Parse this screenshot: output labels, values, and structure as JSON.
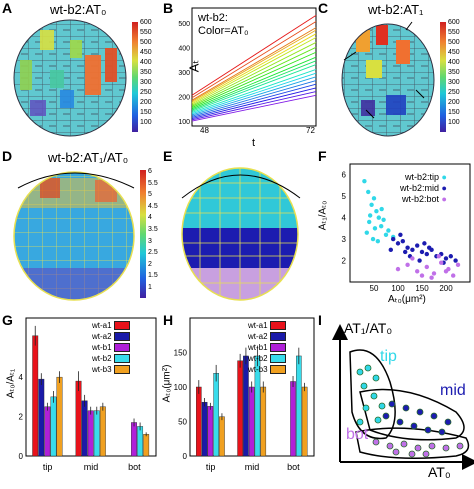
{
  "panels": {
    "A": {
      "letter": "A",
      "title": "wt-b2:AT₀",
      "colorbar_ticks": [
        "600",
        "550",
        "500",
        "450",
        "400",
        "350",
        "300",
        "250",
        "200",
        "150",
        "100"
      ]
    },
    "B": {
      "letter": "B",
      "annotation_line1": "wt-b2:",
      "annotation_line2": "Color=AT₀",
      "ylabel": "Aₜ",
      "xlabel": "t",
      "yticks": [
        "500",
        "400",
        "300",
        "200",
        "100"
      ],
      "xticks": [
        "48",
        "72"
      ]
    },
    "C": {
      "letter": "C",
      "title": "wt-b2:AT₁",
      "colorbar_ticks": [
        "600",
        "550",
        "500",
        "450",
        "400",
        "350",
        "300",
        "250",
        "200",
        "150",
        "100"
      ]
    },
    "D": {
      "letter": "D",
      "title": "wt-b2:AT₁/AT₀",
      "colorbar_ticks": [
        "6",
        "5.5",
        "5",
        "4.5",
        "4",
        "3.5",
        "3",
        "2.5",
        "2",
        "1.5",
        "1"
      ]
    },
    "E": {
      "letter": "E"
    },
    "F": {
      "letter": "F",
      "ylabel": "Aₜ₁/Aₜ₀",
      "xlabel": "Aₜ₀(μm²)",
      "yticks": [
        "6",
        "5",
        "4",
        "3",
        "2"
      ],
      "xticks": [
        "50",
        "100",
        "150",
        "200"
      ],
      "legend": [
        "wt-b2:tip",
        "wt-b2:mid",
        "wt-b2:bot"
      ]
    },
    "G": {
      "letter": "G",
      "ylabel": "Aₜ₀/Aₜ₁",
      "yticks": [
        "4",
        "2",
        "0"
      ],
      "xticks": [
        "tip",
        "mid",
        "bot"
      ]
    },
    "H": {
      "letter": "H",
      "ylabel": "Aₜ₀(μm²)",
      "yticks": [
        "150",
        "100",
        "50",
        "0"
      ],
      "xticks": [
        "tip",
        "mid",
        "bot"
      ]
    },
    "I": {
      "letter": "I",
      "ylabel": "AT₁/AT₀",
      "xlabel": "AT₀",
      "group_tip": "tip",
      "group_mid": "mid",
      "group_bot": "bot"
    }
  },
  "colors": {
    "wt-a1": "#e8121b",
    "wt-a2": "#1a1aa8",
    "wt-b1": "#b020d8",
    "wt-b2": "#38dceb",
    "wt-b3": "#f0a020",
    "tip": "#30d8e8",
    "mid": "#1c1cb0",
    "bot": "#c070e8",
    "gray": "#808080"
  },
  "chart_data": [
    {
      "type": "line",
      "panel": "B",
      "x": [
        48,
        72
      ],
      "ylim": [
        80,
        560
      ],
      "series_start": [
        205,
        195,
        185,
        180,
        175,
        170,
        165,
        160,
        155,
        150,
        145,
        140,
        135,
        130,
        125,
        120,
        115,
        110,
        105,
        100
      ],
      "series_end": [
        530,
        505,
        480,
        470,
        455,
        440,
        420,
        400,
        380,
        360,
        345,
        330,
        310,
        295,
        280,
        265,
        250,
        235,
        220,
        205
      ]
    },
    {
      "type": "scatter",
      "panel": "F",
      "xlim": [
        0,
        250
      ],
      "ylim": [
        1,
        6.5
      ],
      "legend": [
        "wt-b2:tip",
        "wt-b2:mid",
        "wt-b2:bot"
      ],
      "series": [
        {
          "name": "wt-b2:tip",
          "points": [
            [
              30,
              5.7
            ],
            [
              38,
              5.2
            ],
            [
              45,
              4.6
            ],
            [
              50,
              4.9
            ],
            [
              55,
              4.3
            ],
            [
              60,
              4.0
            ],
            [
              40,
              3.8
            ],
            [
              65,
              3.6
            ],
            [
              70,
              3.9
            ],
            [
              35,
              3.3
            ],
            [
              75,
              3.2
            ],
            [
              48,
              3.0
            ],
            [
              58,
              2.9
            ],
            [
              80,
              3.4
            ],
            [
              90,
              3.1
            ],
            [
              42,
              4.1
            ],
            [
              66,
              4.4
            ],
            [
              52,
              3.5
            ]
          ]
        },
        {
          "name": "wt-b2:mid",
          "points": [
            [
              90,
              3.0
            ],
            [
              100,
              2.8
            ],
            [
              110,
              2.9
            ],
            [
              120,
              2.6
            ],
            [
              130,
              2.5
            ],
            [
              140,
              2.7
            ],
            [
              150,
              2.4
            ],
            [
              160,
              2.3
            ],
            [
              170,
              2.5
            ],
            [
              180,
              2.2
            ],
            [
              190,
              2.3
            ],
            [
              200,
              2.1
            ],
            [
              210,
              2.2
            ],
            [
              220,
              2.0
            ],
            [
              105,
              3.2
            ],
            [
              125,
              2.2
            ],
            [
              145,
              2.0
            ],
            [
              165,
              2.6
            ],
            [
              195,
              1.9
            ],
            [
              85,
              2.5
            ],
            [
              115,
              2.4
            ],
            [
              155,
              2.8
            ]
          ]
        },
        {
          "name": "wt-b2:bot",
          "points": [
            [
              100,
              1.6
            ],
            [
              120,
              1.8
            ],
            [
              140,
              1.5
            ],
            [
              160,
              1.7
            ],
            [
              175,
              1.4
            ],
            [
              190,
              1.9
            ],
            [
              205,
              1.6
            ],
            [
              215,
              1.3
            ],
            [
              225,
              1.8
            ],
            [
              130,
              2.1
            ],
            [
              150,
              1.3
            ],
            [
              185,
              2.2
            ],
            [
              200,
              1.5
            ],
            [
              170,
              1.2
            ]
          ]
        }
      ]
    },
    {
      "type": "bar",
      "panel": "G",
      "categories": [
        "tip",
        "mid",
        "bot"
      ],
      "ylim": [
        0,
        7
      ],
      "series": [
        {
          "name": "wt-a1",
          "values": [
            6.1,
            3.8,
            null
          ],
          "errors": [
            0.5,
            0.5,
            null
          ]
        },
        {
          "name": "wt-a2",
          "values": [
            3.9,
            2.8,
            null
          ],
          "errors": [
            0.3,
            0.3,
            null
          ]
        },
        {
          "name": "wt-b1",
          "values": [
            2.5,
            2.3,
            1.7
          ],
          "errors": [
            0.2,
            0.2,
            0.2
          ]
        },
        {
          "name": "wt-b2",
          "values": [
            3.0,
            2.3,
            1.5
          ],
          "errors": [
            0.3,
            0.2,
            0.2
          ]
        },
        {
          "name": "wt-b3",
          "values": [
            4.0,
            2.5,
            1.1
          ],
          "errors": [
            0.3,
            0.2,
            0.1
          ]
        }
      ]
    },
    {
      "type": "bar",
      "panel": "H",
      "categories": [
        "tip",
        "mid",
        "bot"
      ],
      "ylim": [
        0,
        200
      ],
      "series": [
        {
          "name": "wt-a1",
          "values": [
            100,
            138,
            null
          ],
          "errors": [
            10,
            10,
            null
          ]
        },
        {
          "name": "wt-a2",
          "values": [
            78,
            145,
            null
          ],
          "errors": [
            6,
            12,
            null
          ]
        },
        {
          "name": "wt-b1",
          "values": [
            72,
            100,
            108
          ],
          "errors": [
            5,
            8,
            8
          ]
        },
        {
          "name": "wt-b2",
          "values": [
            120,
            145,
            145
          ],
          "errors": [
            12,
            15,
            12
          ]
        },
        {
          "name": "wt-b3",
          "values": [
            57,
            100,
            100
          ],
          "errors": [
            5,
            8,
            6
          ]
        }
      ]
    }
  ]
}
